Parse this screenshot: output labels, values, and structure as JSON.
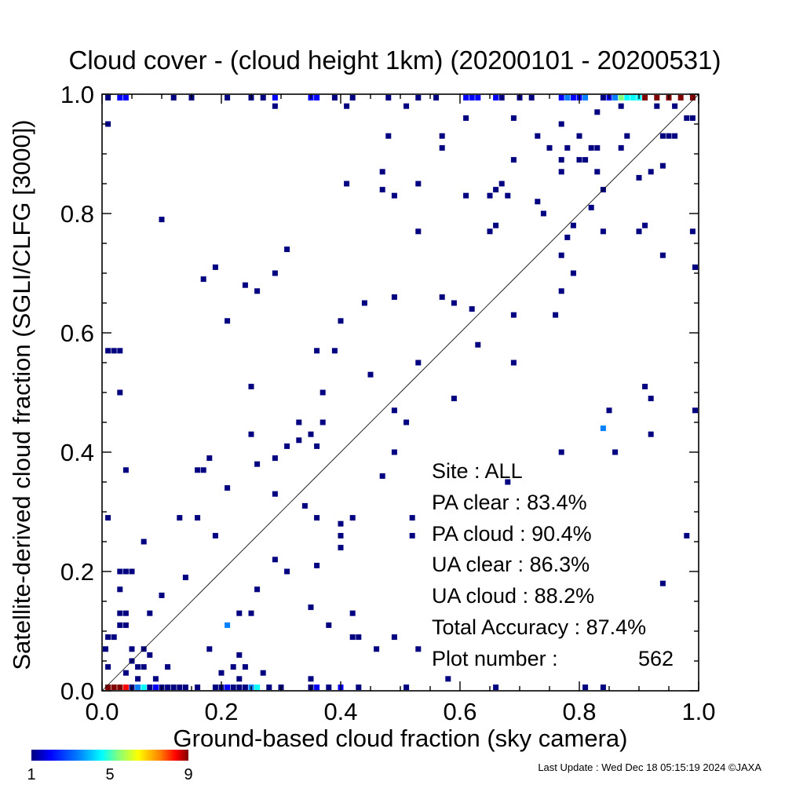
{
  "chart_data": {
    "type": "heatmap",
    "title": "Cloud cover - (cloud height 1km)  (20200101 - 20200531)",
    "xlabel": "Ground-based cloud fraction (sky camera)",
    "ylabel": "Satellite-derived cloud fraction (SGLI/CLFG [3000])",
    "xlim": [
      0,
      1
    ],
    "ylim": [
      0,
      1
    ],
    "x_ticks": [
      "0.0",
      "0.2",
      "0.4",
      "0.6",
      "0.8",
      "1.0"
    ],
    "y_ticks": [
      "0.0",
      "0.2",
      "0.4",
      "0.6",
      "0.8",
      "1.0"
    ],
    "reference_line": "y = x",
    "grid": false,
    "stats": [
      {
        "label": "Site :",
        "value": "ALL"
      },
      {
        "label": "PA clear :",
        "value": "83.4%"
      },
      {
        "label": "PA cloud :",
        "value": "90.4%"
      },
      {
        "label": "UA clear :",
        "value": "86.3%"
      },
      {
        "label": "UA cloud :",
        "value": "88.2%"
      },
      {
        "label": "Total Accuracy :",
        "value": "87.4%"
      },
      {
        "label": "Plot number :",
        "value": "562"
      }
    ],
    "colorbar": {
      "ticks": [
        "1",
        "5",
        "9"
      ],
      "min": 1,
      "max": 9,
      "colors": [
        "#000080",
        "#0000ff",
        "#0080ff",
        "#00ffff",
        "#80ff80",
        "#ffff00",
        "#ff8000",
        "#ff0000",
        "#800000"
      ]
    },
    "points": [
      [
        0.01,
        0.95,
        1
      ],
      [
        0.01,
        1.0,
        1
      ],
      [
        0.03,
        1.0,
        2
      ],
      [
        0.04,
        1.0,
        2
      ],
      [
        0.12,
        1.0,
        1
      ],
      [
        0.15,
        1.0,
        1
      ],
      [
        0.21,
        1.0,
        1
      ],
      [
        0.25,
        1.0,
        1
      ],
      [
        0.27,
        1.0,
        1
      ],
      [
        0.29,
        1.0,
        2
      ],
      [
        0.35,
        1.0,
        2
      ],
      [
        0.36,
        1.0,
        2
      ],
      [
        0.39,
        1.0,
        1
      ],
      [
        0.42,
        1.0,
        1
      ],
      [
        0.48,
        1.0,
        1
      ],
      [
        0.53,
        1.0,
        1
      ],
      [
        0.56,
        1.0,
        1
      ],
      [
        0.61,
        1.0,
        2
      ],
      [
        0.62,
        1.0,
        2
      ],
      [
        0.63,
        1.0,
        2
      ],
      [
        0.66,
        1.0,
        2
      ],
      [
        0.67,
        1.0,
        1
      ],
      [
        0.7,
        1.0,
        1
      ],
      [
        0.72,
        1.0,
        1
      ],
      [
        0.77,
        1.0,
        2
      ],
      [
        0.78,
        1.0,
        3
      ],
      [
        0.79,
        1.0,
        2
      ],
      [
        0.8,
        1.0,
        2
      ],
      [
        0.81,
        1.0,
        3
      ],
      [
        0.84,
        1.0,
        1
      ],
      [
        0.85,
        1.0,
        2
      ],
      [
        0.86,
        1.0,
        3
      ],
      [
        0.87,
        1.0,
        5
      ],
      [
        0.88,
        1.0,
        4
      ],
      [
        0.89,
        1.0,
        4
      ],
      [
        0.9,
        1.0,
        4
      ],
      [
        0.91,
        1.0,
        9
      ],
      [
        0.93,
        1.0,
        9
      ],
      [
        0.95,
        1.0,
        9
      ],
      [
        0.97,
        1.0,
        9
      ],
      [
        0.99,
        1.0,
        9
      ],
      [
        0.29,
        0.98,
        1
      ],
      [
        0.41,
        0.98,
        1
      ],
      [
        0.51,
        0.98,
        1
      ],
      [
        0.87,
        0.98,
        1
      ],
      [
        0.93,
        0.98,
        1
      ],
      [
        0.96,
        0.98,
        1
      ],
      [
        0.98,
        0.96,
        1
      ],
      [
        0.99,
        0.96,
        1
      ],
      [
        0.61,
        0.96,
        1
      ],
      [
        0.69,
        0.96,
        1
      ],
      [
        0.77,
        0.95,
        1
      ],
      [
        0.83,
        0.97,
        1
      ],
      [
        0.48,
        0.93,
        1
      ],
      [
        0.57,
        0.93,
        1
      ],
      [
        0.73,
        0.93,
        1
      ],
      [
        0.8,
        0.93,
        1
      ],
      [
        0.88,
        0.93,
        1
      ],
      [
        0.94,
        0.93,
        1
      ],
      [
        0.95,
        0.93,
        1
      ],
      [
        0.96,
        0.93,
        1
      ],
      [
        0.57,
        0.91,
        1
      ],
      [
        0.75,
        0.91,
        1
      ],
      [
        0.78,
        0.91,
        1
      ],
      [
        0.82,
        0.91,
        1
      ],
      [
        0.83,
        0.91,
        1
      ],
      [
        0.87,
        0.91,
        1
      ],
      [
        0.69,
        0.89,
        1
      ],
      [
        0.77,
        0.89,
        1
      ],
      [
        0.8,
        0.89,
        1
      ],
      [
        0.81,
        0.89,
        1
      ],
      [
        0.47,
        0.87,
        1
      ],
      [
        0.77,
        0.87,
        1
      ],
      [
        0.83,
        0.87,
        1
      ],
      [
        0.92,
        0.87,
        1
      ],
      [
        0.94,
        0.88,
        1
      ],
      [
        0.9,
        0.86,
        1
      ],
      [
        0.41,
        0.85,
        1
      ],
      [
        0.53,
        0.85,
        1
      ],
      [
        0.67,
        0.85,
        1
      ],
      [
        0.84,
        0.84,
        1
      ],
      [
        0.47,
        0.84,
        1
      ],
      [
        0.66,
        0.84,
        1
      ],
      [
        0.49,
        0.83,
        1
      ],
      [
        0.61,
        0.83,
        1
      ],
      [
        0.65,
        0.83,
        1
      ],
      [
        0.68,
        0.83,
        1
      ],
      [
        0.73,
        0.82,
        1
      ],
      [
        0.82,
        0.81,
        1
      ],
      [
        0.74,
        0.8,
        1
      ],
      [
        0.1,
        0.79,
        1
      ],
      [
        0.66,
        0.78,
        1
      ],
      [
        0.79,
        0.78,
        1
      ],
      [
        0.91,
        0.78,
        1
      ],
      [
        0.53,
        0.77,
        1
      ],
      [
        0.65,
        0.77,
        1
      ],
      [
        0.84,
        0.77,
        1
      ],
      [
        0.9,
        0.77,
        1
      ],
      [
        0.99,
        0.77,
        1
      ],
      [
        0.78,
        0.76,
        1
      ],
      [
        0.31,
        0.74,
        1
      ],
      [
        0.77,
        0.73,
        1
      ],
      [
        0.94,
        0.73,
        1
      ],
      [
        0.19,
        0.71,
        1
      ],
      [
        1.0,
        0.71,
        1
      ],
      [
        0.29,
        0.7,
        1
      ],
      [
        0.79,
        0.7,
        1
      ],
      [
        0.17,
        0.69,
        1
      ],
      [
        0.24,
        0.68,
        1
      ],
      [
        0.26,
        0.67,
        1
      ],
      [
        0.77,
        0.67,
        1
      ],
      [
        0.49,
        0.66,
        1
      ],
      [
        0.57,
        0.66,
        1
      ],
      [
        0.44,
        0.65,
        1
      ],
      [
        0.59,
        0.65,
        1
      ],
      [
        0.62,
        0.64,
        1
      ],
      [
        0.69,
        0.63,
        1
      ],
      [
        0.76,
        0.63,
        1
      ],
      [
        0.21,
        0.62,
        1
      ],
      [
        0.4,
        0.62,
        1
      ],
      [
        0.63,
        0.58,
        1
      ],
      [
        0.01,
        0.57,
        1
      ],
      [
        0.02,
        0.57,
        1
      ],
      [
        0.03,
        0.57,
        1
      ],
      [
        0.36,
        0.57,
        1
      ],
      [
        0.39,
        0.57,
        1
      ],
      [
        0.53,
        0.55,
        1
      ],
      [
        0.69,
        0.55,
        1
      ],
      [
        0.45,
        0.53,
        1
      ],
      [
        0.25,
        0.51,
        1
      ],
      [
        0.91,
        0.51,
        1
      ],
      [
        0.03,
        0.5,
        1
      ],
      [
        0.37,
        0.5,
        1
      ],
      [
        0.59,
        0.49,
        1
      ],
      [
        0.92,
        0.49,
        1
      ],
      [
        0.49,
        0.47,
        1
      ],
      [
        0.85,
        0.47,
        1
      ],
      [
        1.0,
        0.47,
        1
      ],
      [
        0.33,
        0.45,
        1
      ],
      [
        0.51,
        0.45,
        1
      ],
      [
        0.37,
        0.45,
        1
      ],
      [
        0.84,
        0.44,
        3
      ],
      [
        0.25,
        0.43,
        1
      ],
      [
        0.35,
        0.43,
        1
      ],
      [
        0.92,
        0.43,
        1
      ],
      [
        0.33,
        0.42,
        1
      ],
      [
        0.31,
        0.41,
        1
      ],
      [
        0.36,
        0.41,
        1
      ],
      [
        0.49,
        0.4,
        1
      ],
      [
        0.77,
        0.4,
        1
      ],
      [
        0.86,
        0.4,
        1
      ],
      [
        0.18,
        0.39,
        1
      ],
      [
        0.29,
        0.39,
        1
      ],
      [
        0.26,
        0.38,
        1
      ],
      [
        0.04,
        0.37,
        1
      ],
      [
        0.16,
        0.37,
        1
      ],
      [
        0.17,
        0.37,
        1
      ],
      [
        0.47,
        0.36,
        1
      ],
      [
        0.68,
        0.35,
        1
      ],
      [
        0.21,
        0.34,
        1
      ],
      [
        0.29,
        0.33,
        1
      ],
      [
        0.34,
        0.31,
        1
      ],
      [
        0.01,
        0.29,
        1
      ],
      [
        0.13,
        0.29,
        1
      ],
      [
        0.16,
        0.29,
        1
      ],
      [
        0.36,
        0.29,
        1
      ],
      [
        0.42,
        0.29,
        1
      ],
      [
        0.52,
        0.29,
        1
      ],
      [
        0.4,
        0.28,
        1
      ],
      [
        0.4,
        0.26,
        1
      ],
      [
        0.19,
        0.26,
        1
      ],
      [
        0.52,
        0.26,
        1
      ],
      [
        0.98,
        0.26,
        1
      ],
      [
        0.07,
        0.25,
        1
      ],
      [
        0.4,
        0.24,
        1
      ],
      [
        0.29,
        0.22,
        1
      ],
      [
        0.03,
        0.2,
        1
      ],
      [
        0.04,
        0.2,
        1
      ],
      [
        0.05,
        0.2,
        1
      ],
      [
        0.31,
        0.2,
        1
      ],
      [
        0.36,
        0.21,
        1
      ],
      [
        0.14,
        0.19,
        1
      ],
      [
        0.26,
        0.17,
        1
      ],
      [
        0.03,
        0.17,
        1
      ],
      [
        0.1,
        0.16,
        1
      ],
      [
        0.94,
        0.18,
        1
      ],
      [
        0.35,
        0.14,
        1
      ],
      [
        0.03,
        0.13,
        1
      ],
      [
        0.04,
        0.13,
        1
      ],
      [
        0.08,
        0.13,
        1
      ],
      [
        0.23,
        0.13,
        1
      ],
      [
        0.25,
        0.13,
        1
      ],
      [
        0.42,
        0.13,
        1
      ],
      [
        0.03,
        0.11,
        1
      ],
      [
        0.04,
        0.11,
        1
      ],
      [
        0.21,
        0.11,
        3
      ],
      [
        0.38,
        0.11,
        1
      ],
      [
        0.01,
        0.09,
        1
      ],
      [
        0.02,
        0.09,
        1
      ],
      [
        0.42,
        0.09,
        1
      ],
      [
        0.43,
        0.09,
        1
      ],
      [
        0.49,
        0.09,
        1
      ],
      [
        0.0,
        0.07,
        1
      ],
      [
        0.07,
        0.07,
        1
      ],
      [
        0.18,
        0.07,
        1
      ],
      [
        0.46,
        0.07,
        1
      ],
      [
        0.53,
        0.07,
        1
      ],
      [
        0.05,
        0.07,
        1
      ],
      [
        0.08,
        0.06,
        1
      ],
      [
        0.23,
        0.06,
        1
      ],
      [
        0.01,
        0.04,
        1
      ],
      [
        0.05,
        0.05,
        1
      ],
      [
        0.06,
        0.04,
        1
      ],
      [
        0.07,
        0.04,
        1
      ],
      [
        0.11,
        0.04,
        1
      ],
      [
        0.22,
        0.04,
        1
      ],
      [
        0.24,
        0.04,
        1
      ],
      [
        0.04,
        0.03,
        1
      ],
      [
        0.2,
        0.03,
        1
      ],
      [
        0.27,
        0.03,
        1
      ],
      [
        0.06,
        0.02,
        1
      ],
      [
        0.09,
        0.02,
        1
      ],
      [
        0.23,
        0.02,
        1
      ],
      [
        0.35,
        0.02,
        1
      ],
      [
        0.58,
        0.02,
        1
      ],
      [
        0.01,
        0.0,
        9
      ],
      [
        0.02,
        0.0,
        9
      ],
      [
        0.03,
        0.0,
        9
      ],
      [
        0.04,
        0.0,
        8
      ],
      [
        0.05,
        0.0,
        1
      ],
      [
        0.06,
        0.0,
        3
      ],
      [
        0.07,
        0.0,
        4
      ],
      [
        0.08,
        0.0,
        1
      ],
      [
        0.09,
        0.0,
        2
      ],
      [
        0.1,
        0.0,
        1
      ],
      [
        0.11,
        0.0,
        1
      ],
      [
        0.12,
        0.0,
        1
      ],
      [
        0.13,
        0.0,
        1
      ],
      [
        0.14,
        0.0,
        1
      ],
      [
        0.16,
        0.0,
        1
      ],
      [
        0.19,
        0.0,
        1
      ],
      [
        0.2,
        0.0,
        1
      ],
      [
        0.21,
        0.0,
        2
      ],
      [
        0.22,
        0.0,
        1
      ],
      [
        0.23,
        0.0,
        1
      ],
      [
        0.24,
        0.0,
        1
      ],
      [
        0.25,
        0.0,
        3
      ],
      [
        0.26,
        0.0,
        4
      ],
      [
        0.28,
        0.0,
        1
      ],
      [
        0.3,
        0.0,
        1
      ],
      [
        0.35,
        0.0,
        1
      ],
      [
        0.36,
        0.0,
        2
      ],
      [
        0.38,
        0.0,
        1
      ],
      [
        0.4,
        0.0,
        2
      ],
      [
        0.43,
        0.0,
        1
      ],
      [
        0.51,
        0.0,
        1
      ],
      [
        0.66,
        0.0,
        1
      ],
      [
        0.81,
        0.0,
        1
      ],
      [
        0.84,
        0.0,
        1
      ]
    ]
  },
  "footer": {
    "last_update": "Last Update : Wed Dec 18 05:15:19 2024  ©JAXA"
  }
}
